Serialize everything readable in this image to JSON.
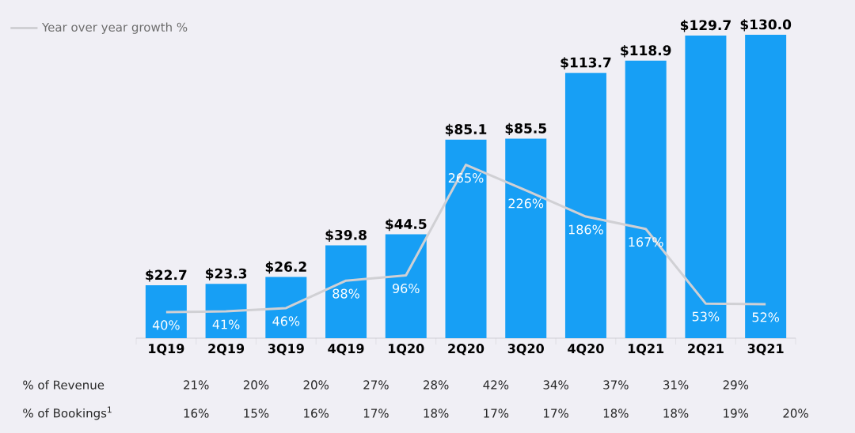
{
  "chart_data": {
    "type": "bar",
    "categories": [
      "1Q19",
      "2Q19",
      "3Q19",
      "4Q19",
      "1Q20",
      "2Q20",
      "3Q20",
      "4Q20",
      "1Q21",
      "2Q21",
      "3Q21"
    ],
    "legend": "top left",
    "tick_labels": "x",
    "series": [
      {
        "color": "#179ff5",
        "values": [
          22.7,
          23.3,
          26.2,
          39.8,
          44.5,
          85.1,
          85.5,
          113.7,
          118.9,
          129.7,
          130.0
        ],
        "value_labels": [
          "$22.7",
          "$23.3",
          "$26.2",
          "$39.8",
          "$44.5",
          "$85.1",
          "$85.5",
          "$113.7",
          "$118.9",
          "$129.7",
          "$130.0"
        ]
      },
      {
        "type": "line",
        "name": "Year over year growth %",
        "axis": "y2",
        "color": "#d0d0d4",
        "values": [
          40,
          41,
          46,
          88,
          96,
          265,
          226,
          186,
          167,
          53,
          52
        ],
        "value_labels": [
          "40%",
          "41%",
          "46%",
          "88%",
          "96%",
          "265%",
          "226%",
          "186%",
          "167%",
          "53%",
          "52%"
        ]
      }
    ],
    "annotations": [
      "% of Revenue",
      "21%",
      "20%",
      "20%",
      "27%",
      "28%",
      "42%",
      "34%",
      "37%",
      "31%",
      "29%",
      null,
      "% of Bookings$^{1}$",
      "16%",
      "15%",
      "16%",
      "17%",
      "18%",
      "17%",
      "17%",
      "18%",
      "18%",
      "19%",
      "20%"
    ]
  }
}
